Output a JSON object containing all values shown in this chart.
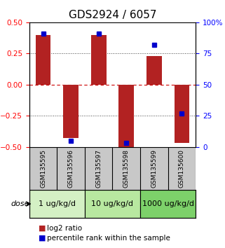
{
  "title": "GDS2924 / 6057",
  "samples": [
    "GSM135595",
    "GSM135596",
    "GSM135597",
    "GSM135598",
    "GSM135599",
    "GSM135600"
  ],
  "log2_ratio": [
    0.4,
    -0.43,
    0.4,
    -0.5,
    0.23,
    -0.47
  ],
  "percentile_rank": [
    91,
    5,
    91,
    3,
    82,
    27
  ],
  "bar_color": "#b22222",
  "dot_color": "#0000cc",
  "ylim_left": [
    -0.5,
    0.5
  ],
  "ylim_right": [
    0,
    100
  ],
  "yticks_left": [
    -0.5,
    -0.25,
    0,
    0.25,
    0.5
  ],
  "yticks_right": [
    0,
    25,
    50,
    75,
    100
  ],
  "ytick_labels_right": [
    "0",
    "25",
    "50",
    "75",
    "100%"
  ],
  "dose_groups": [
    {
      "label": "1 ug/kg/d",
      "indices": [
        0,
        1
      ],
      "color": "#d4f0c4"
    },
    {
      "label": "10 ug/kg/d",
      "indices": [
        2,
        3
      ],
      "color": "#b8e8a0"
    },
    {
      "label": "1000 ug/kg/d",
      "indices": [
        4,
        5
      ],
      "color": "#7dd16a"
    }
  ],
  "dose_label": "dose",
  "legend_bar_label": "log2 ratio",
  "legend_dot_label": "percentile rank within the sample",
  "bar_width": 0.55,
  "hline_zero_color": "#cc0000",
  "hline_style": "dotted",
  "grid_color": "#555555",
  "background_plot": "#ffffff",
  "background_sample_row": "#c8c8c8",
  "title_fontsize": 11,
  "tick_fontsize": 7.5,
  "dose_fontsize": 8,
  "legend_fontsize": 7.5
}
